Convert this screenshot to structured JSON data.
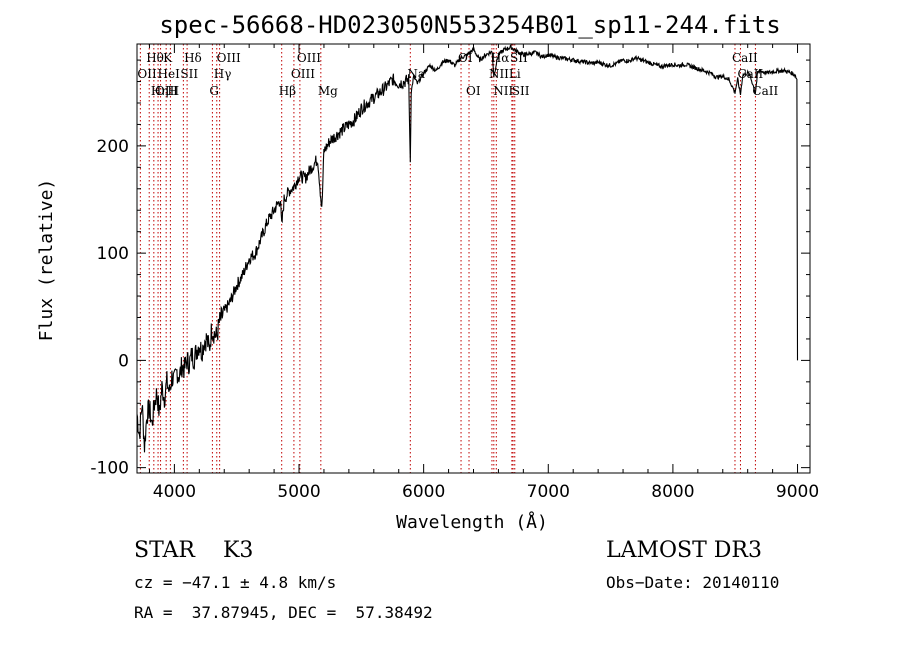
{
  "chart_data": {
    "type": "line",
    "title": "spec-56668-HD023050N553254B01_sp11-244.fits",
    "xlabel": "Wavelength (Å)",
    "ylabel": "Flux (relative)",
    "xlim": [
      3700,
      9100
    ],
    "ylim": [
      -105,
      295
    ],
    "xticks": [
      4000,
      5000,
      6000,
      7000,
      8000,
      9000
    ],
    "yticks": [
      -100,
      0,
      100,
      200
    ],
    "series": [
      {
        "name": "spectrum",
        "x": [
          3700,
          3720,
          3740,
          3760,
          3780,
          3800,
          3820,
          3840,
          3860,
          3880,
          3900,
          3920,
          3940,
          3960,
          3980,
          4000,
          4020,
          4040,
          4060,
          4080,
          4100,
          4120,
          4140,
          4160,
          4180,
          4200,
          4220,
          4240,
          4260,
          4280,
          4300,
          4320,
          4340,
          4360,
          4380,
          4400,
          4450,
          4500,
          4550,
          4600,
          4650,
          4700,
          4750,
          4800,
          4850,
          4861,
          4880,
          4920,
          4960,
          5000,
          5050,
          5100,
          5150,
          5183,
          5200,
          5250,
          5300,
          5350,
          5400,
          5450,
          5500,
          5550,
          5600,
          5650,
          5700,
          5750,
          5800,
          5850,
          5880,
          5893,
          5900,
          5920,
          5950,
          6000,
          6050,
          6100,
          6150,
          6200,
          6250,
          6300,
          6350,
          6400,
          6450,
          6500,
          6550,
          6563,
          6580,
          6600,
          6650,
          6700,
          6750,
          6800,
          6850,
          6900,
          6950,
          7000,
          7050,
          7100,
          7150,
          7200,
          7250,
          7300,
          7350,
          7400,
          7450,
          7500,
          7550,
          7600,
          7650,
          7700,
          7750,
          7800,
          7850,
          7900,
          7950,
          8000,
          8050,
          8100,
          8150,
          8200,
          8250,
          8300,
          8350,
          8400,
          8450,
          8498,
          8520,
          8542,
          8560,
          8600,
          8620,
          8662,
          8680,
          8700,
          8750,
          8800,
          8850,
          8900,
          8950,
          8980,
          8995,
          9000
        ],
        "values": [
          -50,
          -70,
          -40,
          -80,
          -50,
          -45,
          -60,
          -40,
          -30,
          -50,
          -25,
          -35,
          -20,
          -30,
          -15,
          -20,
          -10,
          -15,
          -5,
          -8,
          0,
          -3,
          5,
          2,
          10,
          15,
          8,
          18,
          20,
          10,
          30,
          25,
          22,
          35,
          40,
          45,
          55,
          70,
          80,
          95,
          100,
          115,
          130,
          140,
          150,
          125,
          150,
          158,
          162,
          172,
          170,
          180,
          188,
          140,
          195,
          205,
          210,
          215,
          220,
          225,
          235,
          240,
          245,
          250,
          255,
          262,
          258,
          260,
          262,
          185,
          250,
          265,
          258,
          268,
          275,
          270,
          278,
          280,
          275,
          282,
          285,
          290,
          280,
          285,
          288,
          265,
          275,
          285,
          290,
          292,
          288,
          285,
          286,
          287,
          283,
          285,
          283,
          282,
          281,
          280,
          279,
          278,
          277,
          278,
          276,
          275,
          277,
          280,
          279,
          282,
          280,
          278,
          276,
          274,
          275,
          276,
          275,
          276,
          274,
          272,
          270,
          268,
          264,
          265,
          262,
          250,
          262,
          248,
          266,
          268,
          265,
          250,
          268,
          270,
          268,
          269,
          270,
          270,
          268,
          266,
          262,
          0
        ]
      }
    ],
    "line_labels": [
      {
        "label": "Hθ",
        "wavelength": 3798,
        "row": 1
      },
      {
        "label": "OII",
        "wavelength": 3727,
        "row": 2
      },
      {
        "label": "OIII",
        "wavelength": 3869,
        "row": 3
      },
      {
        "label": "K",
        "wavelength": 3934,
        "row": 1
      },
      {
        "label": "HeI",
        "wavelength": 3889,
        "row": 2
      },
      {
        "label": "Hη",
        "wavelength": 3835,
        "row": 3
      },
      {
        "label": "Hδ",
        "wavelength": 4102,
        "row": 1
      },
      {
        "label": "SII",
        "wavelength": 4072,
        "row": 2
      },
      {
        "label": "H",
        "wavelength": 3968,
        "row": 3
      },
      {
        "label": "OIII",
        "wavelength": 4363,
        "row": 1
      },
      {
        "label": "Hγ",
        "wavelength": 4340,
        "row": 2
      },
      {
        "label": "G",
        "wavelength": 4305,
        "row": 3
      },
      {
        "label": "OIII",
        "wavelength": 5007,
        "row": 1
      },
      {
        "label": "OIII",
        "wavelength": 4959,
        "row": 2
      },
      {
        "label": "Hβ",
        "wavelength": 4861,
        "row": 3
      },
      {
        "label": "Mg",
        "wavelength": 5175,
        "row": 3
      },
      {
        "label": "Na",
        "wavelength": 5893,
        "row": 2
      },
      {
        "label": "OI",
        "wavelength": 6300,
        "row": 1
      },
      {
        "label": "OI",
        "wavelength": 6364,
        "row": 3
      },
      {
        "label": "Hα",
        "wavelength": 6563,
        "row": 1
      },
      {
        "label": "NII",
        "wavelength": 6548,
        "row": 2
      },
      {
        "label": "NII",
        "wavelength": 6583,
        "row": 3
      },
      {
        "label": "SII",
        "wavelength": 6717,
        "row": 1
      },
      {
        "label": "Li",
        "wavelength": 6708,
        "row": 2
      },
      {
        "label": "SII",
        "wavelength": 6731,
        "row": 3
      },
      {
        "label": "CaII",
        "wavelength": 8498,
        "row": 1
      },
      {
        "label": "CaII",
        "wavelength": 8542,
        "row": 2
      },
      {
        "label": "CaII",
        "wavelength": 8662,
        "row": 3
      }
    ],
    "line_color": "#000000",
    "marker_color": "#c00000"
  },
  "info": {
    "class_text": "STAR    K3",
    "survey": "LAMOST DR3",
    "cz": "cz = −47.1 ± 4.8 km/s",
    "obs_date": "Obs−Date: 20140110",
    "coords": "RA =  37.87945, DEC =  57.38492"
  }
}
